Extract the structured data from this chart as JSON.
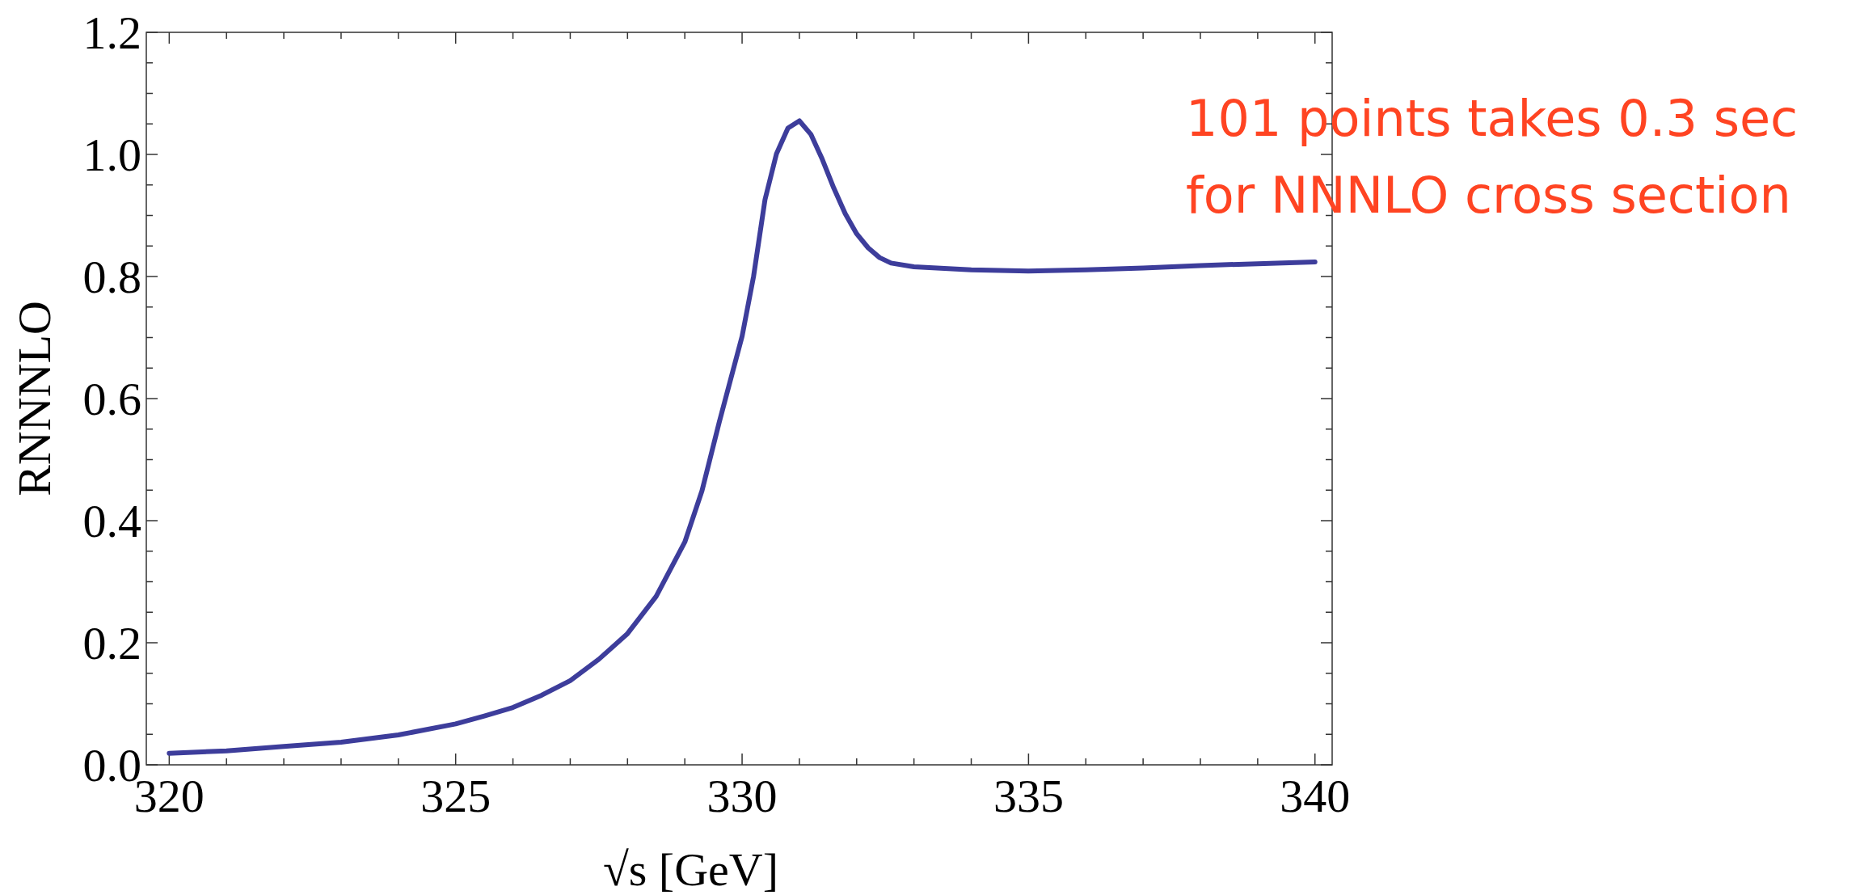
{
  "chart_data": {
    "type": "line",
    "xlabel": "√s [GeV]",
    "ylabel": "RNNNLO",
    "annotations": [
      "101 points takes  0.3 sec\nfor NNNLO cross section"
    ],
    "xlim": [
      319.6,
      340.3
    ],
    "ylim": [
      0,
      1.2
    ],
    "xticks": [
      320,
      {
        "value": 321,
        "label": null
      },
      {
        "value": 322,
        "label": null
      },
      {
        "value": 323,
        "label": null
      },
      {
        "value": 324,
        "label": null
      },
      325,
      {
        "value": 326,
        "label": null
      },
      {
        "value": 327,
        "label": null
      },
      {
        "value": 328,
        "label": null
      },
      {
        "value": 329,
        "label": null
      },
      330,
      {
        "value": 331,
        "label": null
      },
      {
        "value": 332,
        "label": null
      },
      {
        "value": 333,
        "label": null
      },
      {
        "value": 334,
        "label": null
      },
      335,
      {
        "value": 336,
        "label": null
      },
      {
        "value": 337,
        "label": null
      },
      {
        "value": 338,
        "label": null
      },
      {
        "value": 339,
        "label": null
      },
      340
    ],
    "yticks": [
      {
        "value": 0,
        "label": "0.0"
      },
      {
        "value": 0.05,
        "label": null
      },
      {
        "value": 0.1,
        "label": null
      },
      {
        "value": 0.15,
        "label": null
      },
      0.2,
      {
        "value": 0.25,
        "label": null
      },
      {
        "value": 0.3,
        "label": null
      },
      {
        "value": 0.35,
        "label": null
      },
      0.4,
      {
        "value": 0.45,
        "label": null
      },
      {
        "value": 0.5,
        "label": null
      },
      {
        "value": 0.55,
        "label": null
      },
      0.6,
      {
        "value": 0.65,
        "label": null
      },
      {
        "value": 0.7,
        "label": null
      },
      {
        "value": 0.75,
        "label": null
      },
      0.8,
      {
        "value": 0.85,
        "label": null
      },
      {
        "value": 0.9,
        "label": null
      },
      {
        "value": 0.95,
        "label": null
      },
      {
        "value": 1,
        "label": "1.0"
      },
      {
        "value": 1.05,
        "label": null
      },
      {
        "value": 1.1,
        "label": null
      },
      {
        "value": 1.15,
        "label": null
      },
      1.2
    ],
    "grid": false,
    "x": [
      320,
      321,
      322,
      323,
      324,
      325,
      325.5,
      326,
      326.5,
      327,
      327.5,
      328,
      328.5,
      329,
      329.3,
      329.6,
      330,
      330.2,
      330.4,
      330.6,
      330.8,
      331,
      331.2,
      331.4,
      331.6,
      331.8,
      332,
      332.2,
      332.4,
      332.6,
      333,
      334,
      335,
      336,
      337,
      338,
      339,
      340
    ],
    "series": [
      {
        "color": "#3d3d9b",
        "values": [
          0.019,
          0.023,
          0.03,
          0.037,
          0.049,
          0.067,
          0.08,
          0.094,
          0.114,
          0.138,
          0.173,
          0.215,
          0.276,
          0.365,
          0.449,
          0.561,
          0.702,
          0.8,
          0.926,
          1.001,
          1.043,
          1.055,
          1.033,
          0.992,
          0.945,
          0.903,
          0.87,
          0.847,
          0.831,
          0.822,
          0.816,
          0.811,
          0.809,
          0.811,
          0.814,
          0.818,
          0.821,
          0.824
        ]
      }
    ]
  }
}
